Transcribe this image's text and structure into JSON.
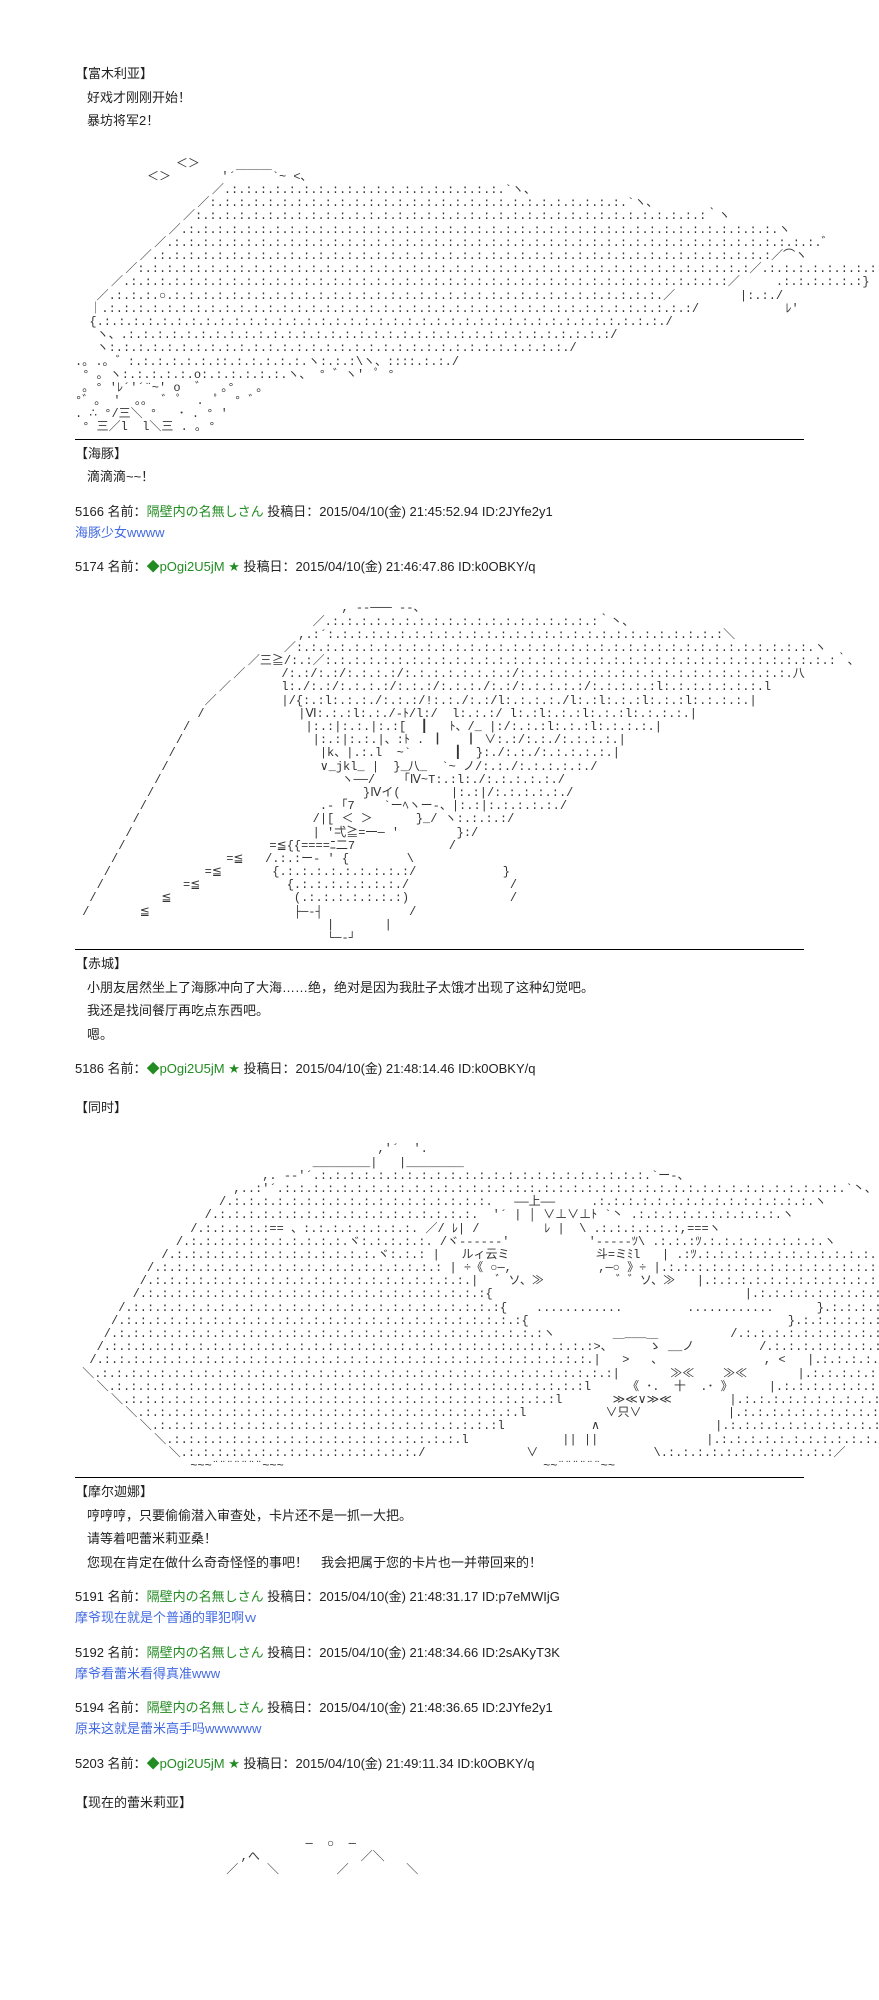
{
  "post_top": {
    "char": "【富木利亚】",
    "line1": "好戏才刚刚开始！",
    "line2": "暴坊将军2！"
  },
  "dolphin": {
    "char": "【海豚】",
    "line1": "滴滴滴~~！"
  },
  "posts": [
    {
      "no": "5166",
      "name_prefix": "名前：",
      "name": "隔壁内の名無しさん",
      "date_label": "投稿日：",
      "date": "2015/04/10(金) 21:45:52.94",
      "id_label": "ID:",
      "id": "2JYfe2y1",
      "body": "海豚少女wwww"
    },
    {
      "no": "5174",
      "name_prefix": "名前：",
      "trip": "◆pOgi2U5jM",
      "star": "★",
      "date_label": "投稿日：",
      "date": "2015/04/10(金) 21:46:47.86",
      "id_label": "ID:",
      "id": "k0OBKY/q",
      "body": ""
    }
  ],
  "akagi": {
    "char": "【赤城】",
    "line1": "小朋友居然坐上了海豚冲向了大海……绝，绝对是因为我肚子太饿才出现了这种幻觉吧。",
    "line2": "我还是找间餐厅再吃点东西吧。",
    "line3": "嗯。"
  },
  "post5186": {
    "no": "5186",
    "name_prefix": "名前：",
    "trip": "◆pOgi2U5jM",
    "star": "★",
    "date_label": "投稿日：",
    "date": "2015/04/10(金) 21:48:14.46",
    "id_label": "ID:",
    "id": "k0OBKY/q"
  },
  "sametime": "【同时】",
  "morgana": {
    "char": "【摩尔迦娜】",
    "line1": "哼哼哼，只要偷偷潜入审查处，卡片还不是一抓一大把。",
    "line2": "请等着吧蕾米莉亚桑！",
    "line3": "您现在肯定在做什么奇奇怪怪的事吧！　我会把属于您的卡片也一并带回来的！"
  },
  "posts2": [
    {
      "no": "5191",
      "name_prefix": "名前：",
      "name": "隔壁内の名無しさん",
      "date_label": "投稿日：",
      "date": "2015/04/10(金) 21:48:31.17",
      "id_label": "ID:",
      "id": "p7eMWIjG",
      "body": "摩爷现在就是个普通的罪犯啊ｗ"
    },
    {
      "no": "5192",
      "name_prefix": "名前：",
      "name": "隔壁内の名無しさん",
      "date_label": "投稿日：",
      "date": "2015/04/10(金) 21:48:34.66",
      "id_label": "ID:",
      "id": "2sAKyT3K",
      "body": "摩爷看蕾米看得真准www"
    },
    {
      "no": "5194",
      "name_prefix": "名前：",
      "name": "隔壁内の名無しさん",
      "date_label": "投稿日：",
      "date": "2015/04/10(金) 21:48:36.65",
      "id_label": "ID:",
      "id": "2JYfe2y1",
      "body": "原来这就是蕾米高手吗wwwwww"
    }
  ],
  "post5203": {
    "no": "5203",
    "name_prefix": "名前：",
    "trip": "◆pOgi2U5jM",
    "star": "★",
    "date_label": "投稿日：",
    "date": "2015/04/10(金) 21:49:11.34",
    "id_label": "ID:",
    "id": "k0OBKY/q"
  },
  "remilia_now": "【现在的蕾米莉亚】"
}
